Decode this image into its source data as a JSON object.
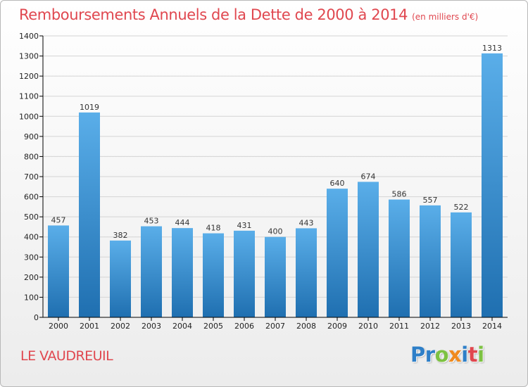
{
  "chart_data": {
    "type": "bar",
    "title": "Remboursements Annuels de la Dette de 2000 à 2014",
    "subtitle": "(en milliers d'€)",
    "categories": [
      "2000",
      "2001",
      "2002",
      "2003",
      "2004",
      "2005",
      "2006",
      "2007",
      "2008",
      "2009",
      "2010",
      "2011",
      "2012",
      "2013",
      "2014"
    ],
    "values": [
      457,
      1019,
      382,
      453,
      444,
      418,
      431,
      400,
      443,
      640,
      674,
      586,
      557,
      522,
      1313
    ],
    "xlabel": "",
    "ylabel": "",
    "ylim": [
      0,
      1400
    ],
    "yticks": [
      0,
      100,
      200,
      300,
      400,
      500,
      600,
      700,
      800,
      900,
      1000,
      1100,
      1200,
      1300,
      1400
    ],
    "grid": true,
    "data_labels": true,
    "bar_color_light": "#5aaee9",
    "bar_color_dark": "#1f6fb0"
  },
  "footer": {
    "commune": "LE VAUDREUIL",
    "logo_letters": [
      {
        "char": "P",
        "color": "#2e7fc8"
      },
      {
        "char": "r",
        "color": "#2e7fc8"
      },
      {
        "char": "o",
        "color": "#7dc242"
      },
      {
        "char": "x",
        "color": "#f08a1d"
      },
      {
        "char": "i",
        "color": "#2e7fc8"
      },
      {
        "char": "t",
        "color": "#e0474f"
      },
      {
        "char": "i",
        "color": "#7dc242"
      }
    ]
  },
  "colors": {
    "title": "#e0474f",
    "grid": "#d4d4d4",
    "axis": "#000000"
  }
}
